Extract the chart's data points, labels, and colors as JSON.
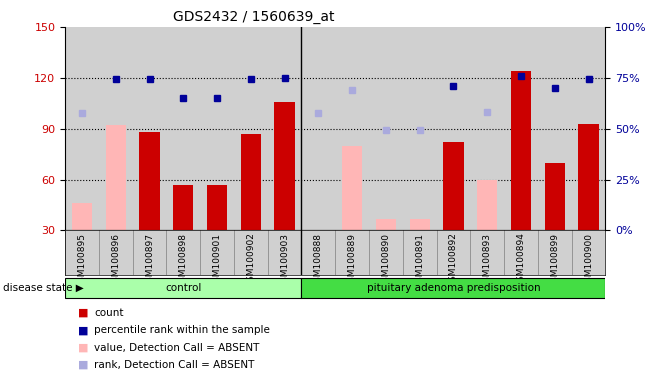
{
  "title": "GDS2432 / 1560639_at",
  "samples": [
    "GSM100895",
    "GSM100896",
    "GSM100897",
    "GSM100898",
    "GSM100901",
    "GSM100902",
    "GSM100903",
    "GSM100888",
    "GSM100889",
    "GSM100890",
    "GSM100891",
    "GSM100892",
    "GSM100893",
    "GSM100894",
    "GSM100899",
    "GSM100900"
  ],
  "count_values": [
    null,
    null,
    88,
    57,
    57,
    87,
    106,
    null,
    null,
    null,
    null,
    82,
    null,
    124,
    70,
    93
  ],
  "value_absent": [
    46,
    92,
    null,
    null,
    null,
    null,
    null,
    null,
    80,
    37,
    37,
    null,
    60,
    null,
    null,
    null
  ],
  "percentile_dark": [
    null,
    119,
    119,
    108,
    108,
    119,
    120,
    null,
    null,
    null,
    null,
    115,
    null,
    121,
    114,
    119
  ],
  "percentile_light": [
    99,
    null,
    null,
    null,
    null,
    null,
    null,
    99,
    113,
    89,
    89,
    null,
    100,
    null,
    null,
    119
  ],
  "control_count": 7,
  "total_count": 16,
  "ylim_left": [
    30,
    150
  ],
  "ylim_right": [
    0,
    100
  ],
  "yticks_left": [
    30,
    60,
    90,
    120,
    150
  ],
  "yticks_right": [
    0,
    25,
    50,
    75,
    100
  ],
  "ytick_right_labels": [
    "0%",
    "25%",
    "50%",
    "75%",
    "100%"
  ],
  "color_count": "#cc0000",
  "color_value_absent": "#ffb6b6",
  "color_percentile_dark": "#000099",
  "color_percentile_light": "#aaaadd",
  "bg_color": "#d0d0d0",
  "control_color": "#aaffaa",
  "disease_color": "#44dd44",
  "legend_items": [
    {
      "label": "count",
      "color": "#cc0000"
    },
    {
      "label": "percentile rank within the sample",
      "color": "#000099"
    },
    {
      "label": "value, Detection Call = ABSENT",
      "color": "#ffb6b6"
    },
    {
      "label": "rank, Detection Call = ABSENT",
      "color": "#aaaadd"
    }
  ]
}
